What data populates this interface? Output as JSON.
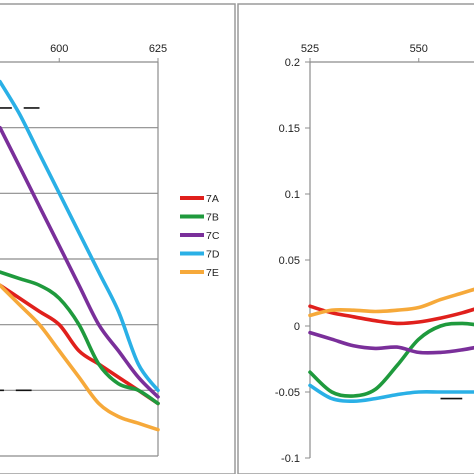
{
  "chart_data": [
    {
      "type": "line",
      "panel": "left",
      "title": "",
      "xlabel": "",
      "ylabel": "",
      "x_tick_labels": [
        "600",
        "625"
      ],
      "xlim": [
        585,
        625
      ],
      "ylim": [
        -0.1,
        0.2
      ],
      "grid": true,
      "legend": {
        "placement": "right",
        "entries": [
          {
            "name": "7A",
            "color": "#e0201c"
          },
          {
            "name": "7B",
            "color": "#1f9a3d"
          },
          {
            "name": "7C",
            "color": "#7a2f9a"
          },
          {
            "name": "7D",
            "color": "#2ab0e6"
          },
          {
            "name": "7E",
            "color": "#f6a93a"
          }
        ]
      },
      "dashed_segments": [
        {
          "y": 0.165,
          "x": [
            585,
            588
          ]
        },
        {
          "y": 0.165,
          "x": [
            591,
            595
          ]
        },
        {
          "y": -0.05,
          "x": [
            585,
            586
          ]
        },
        {
          "y": -0.05,
          "x": [
            589,
            593
          ]
        }
      ],
      "series": [
        {
          "name": "7A",
          "color": "#e0201c",
          "x": [
            585,
            590,
            595,
            600,
            605,
            610,
            615,
            620,
            625
          ],
          "y": [
            0.03,
            0.02,
            0.01,
            0.0,
            -0.02,
            -0.03,
            -0.04,
            -0.05,
            -0.06
          ]
        },
        {
          "name": "7B",
          "color": "#1f9a3d",
          "x": [
            585,
            590,
            595,
            600,
            605,
            610,
            615,
            620,
            625
          ],
          "y": [
            0.04,
            0.035,
            0.03,
            0.02,
            0.0,
            -0.03,
            -0.045,
            -0.05,
            -0.06
          ]
        },
        {
          "name": "7C",
          "color": "#7a2f9a",
          "x": [
            585,
            590,
            595,
            600,
            605,
            610,
            615,
            620,
            625
          ],
          "y": [
            0.15,
            0.12,
            0.09,
            0.06,
            0.03,
            0.0,
            -0.02,
            -0.04,
            -0.055
          ]
        },
        {
          "name": "7D",
          "color": "#2ab0e6",
          "x": [
            585,
            590,
            595,
            600,
            605,
            610,
            615,
            620,
            625
          ],
          "y": [
            0.185,
            0.16,
            0.13,
            0.1,
            0.07,
            0.04,
            0.01,
            -0.03,
            -0.05
          ]
        },
        {
          "name": "7E",
          "color": "#f6a93a",
          "x": [
            585,
            590,
            595,
            600,
            605,
            610,
            615,
            620,
            625
          ],
          "y": [
            0.03,
            0.015,
            0.0,
            -0.02,
            -0.04,
            -0.06,
            -0.07,
            -0.075,
            -0.08
          ]
        }
      ]
    },
    {
      "type": "line",
      "panel": "right",
      "title": "",
      "xlabel": "",
      "ylabel": "",
      "x_tick_labels": [
        "525",
        "550"
      ],
      "xlim": [
        525,
        565
      ],
      "ylim": [
        -0.1,
        0.2
      ],
      "y_tick_labels": [
        "0.2",
        "0.15",
        "0.1",
        "0.05",
        "0",
        "-0.05",
        "-0.1"
      ],
      "grid": false,
      "dashed_segments": [
        {
          "y": -0.055,
          "x": [
            555,
            560
          ]
        }
      ],
      "series": [
        {
          "name": "7A",
          "color": "#e0201c",
          "x": [
            525,
            530,
            535,
            540,
            545,
            550,
            555,
            560,
            565
          ],
          "y": [
            0.015,
            0.01,
            0.007,
            0.004,
            0.002,
            0.003,
            0.006,
            0.01,
            0.015
          ]
        },
        {
          "name": "7B",
          "color": "#1f9a3d",
          "x": [
            525,
            530,
            535,
            540,
            545,
            550,
            555,
            560,
            565
          ],
          "y": [
            -0.035,
            -0.05,
            -0.053,
            -0.048,
            -0.03,
            -0.01,
            0.0,
            0.002,
            0.0
          ]
        },
        {
          "name": "7C",
          "color": "#7a2f9a",
          "x": [
            525,
            530,
            535,
            540,
            545,
            550,
            555,
            560,
            565
          ],
          "y": [
            -0.005,
            -0.01,
            -0.015,
            -0.017,
            -0.016,
            -0.02,
            -0.02,
            -0.018,
            -0.015
          ]
        },
        {
          "name": "7D",
          "color": "#2ab0e6",
          "x": [
            525,
            530,
            535,
            540,
            545,
            550,
            555,
            560,
            565
          ],
          "y": [
            -0.045,
            -0.055,
            -0.057,
            -0.055,
            -0.052,
            -0.05,
            -0.05,
            -0.05,
            -0.05
          ]
        },
        {
          "name": "7E",
          "color": "#f6a93a",
          "x": [
            525,
            530,
            535,
            540,
            545,
            550,
            555,
            560,
            565
          ],
          "y": [
            0.008,
            0.012,
            0.012,
            0.011,
            0.012,
            0.014,
            0.02,
            0.025,
            0.03
          ]
        }
      ]
    }
  ]
}
